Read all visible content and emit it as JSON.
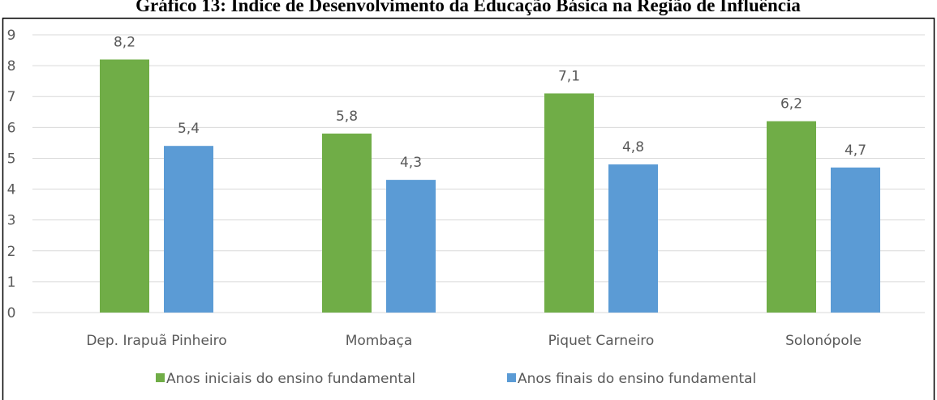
{
  "chart_data": {
    "type": "bar",
    "title": "Gráfico 13: Índice de Desenvolvimento da Educação Básica na Região de Influência",
    "categories": [
      "Dep. Irapuã Pinheiro",
      "Mombaça",
      "Piquet Carneiro",
      "Solonópole"
    ],
    "series": [
      {
        "name": "Anos iniciais do ensino fundamental",
        "color": "#70ad47",
        "values": [
          8.2,
          5.8,
          7.1,
          6.2
        ],
        "value_labels": [
          "8,2",
          "5,8",
          "7,1",
          "6,2"
        ]
      },
      {
        "name": "Anos finais do ensino fundamental",
        "color": "#5b9bd5",
        "values": [
          5.4,
          4.3,
          4.8,
          4.7
        ],
        "value_labels": [
          "5,4",
          "4,3",
          "4,8",
          "4,7"
        ]
      }
    ],
    "ylim": [
      0,
      9
    ],
    "yticks": [
      0,
      1,
      2,
      3,
      4,
      5,
      6,
      7,
      8,
      9
    ],
    "grid": true,
    "legend": "bottom"
  }
}
